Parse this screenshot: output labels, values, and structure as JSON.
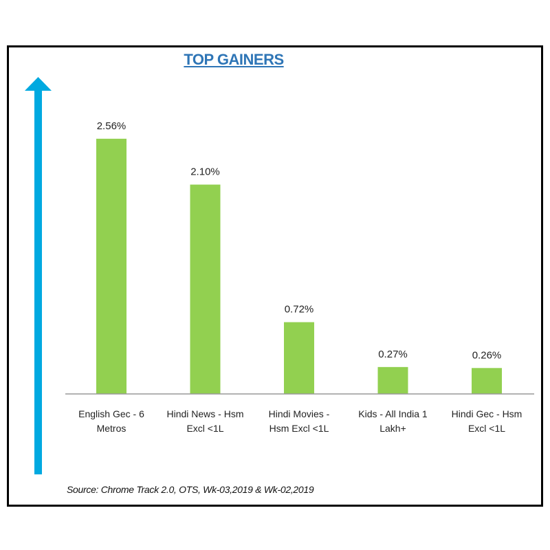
{
  "chart_data": {
    "type": "bar",
    "title": "TOP GAINERS",
    "categories": [
      [
        "English Gec - 6",
        "Metros"
      ],
      [
        "Hindi News - Hsm",
        "Excl <1L"
      ],
      [
        "Hindi Movies -",
        "Hsm Excl  <1L"
      ],
      [
        "Kids - All India 1",
        "Lakh+"
      ],
      [
        "Hindi Gec - Hsm",
        "Excl <1L"
      ]
    ],
    "values": [
      2.56,
      2.1,
      0.72,
      0.27,
      0.26
    ],
    "data_labels": [
      "2.56%",
      "2.10%",
      "0.72%",
      "0.27%",
      "0.26%"
    ],
    "unit": "%",
    "ylim": [
      0,
      2.56
    ],
    "grid": false,
    "colors": {
      "bar": "#92d050",
      "arrow": "#00a9e0",
      "title": "#2e75b6"
    },
    "source": "Source: Chrome Track 2.0, OTS, Wk-03,2019 & Wk-02,2019"
  }
}
